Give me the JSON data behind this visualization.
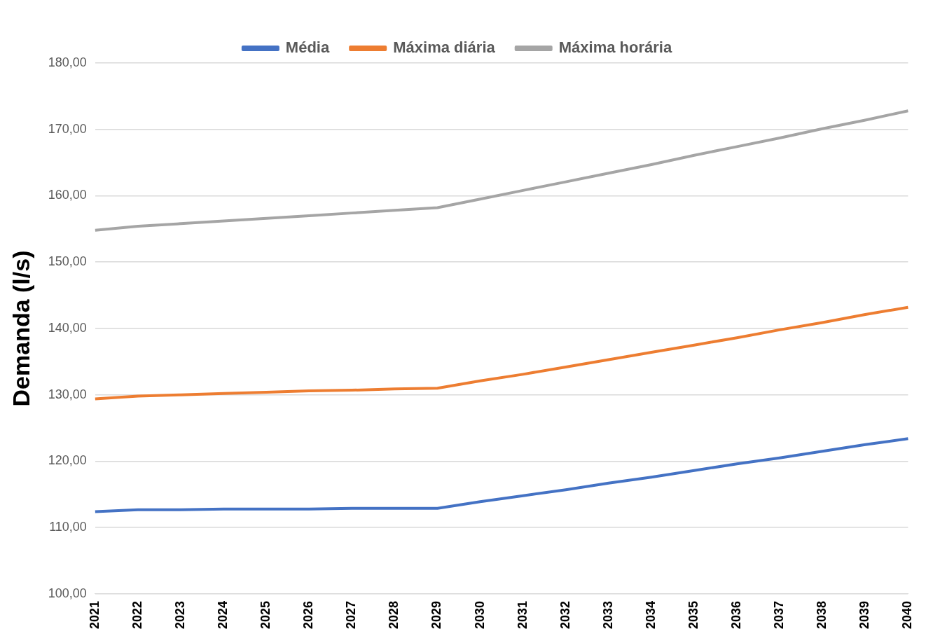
{
  "chart_data": {
    "type": "line",
    "ylabel": "Demanda (l/s)",
    "categories": [
      "2021",
      "2022",
      "2023",
      "2024",
      "2025",
      "2026",
      "2027",
      "2028",
      "2029",
      "2030",
      "2031",
      "2032",
      "2033",
      "2034",
      "2035",
      "2036",
      "2037",
      "2038",
      "2039",
      "2040"
    ],
    "series": [
      {
        "name": "Média",
        "color": "#4472c4",
        "values": [
          112.4,
          112.7,
          112.7,
          112.8,
          112.8,
          112.8,
          112.9,
          112.9,
          112.9,
          113.9,
          114.8,
          115.7,
          116.7,
          117.6,
          118.6,
          119.6,
          120.5,
          121.5,
          122.5,
          123.4
        ]
      },
      {
        "name": "Máxima diária",
        "color": "#ed7d31",
        "values": [
          129.4,
          129.8,
          130.0,
          130.2,
          130.4,
          130.6,
          130.7,
          130.9,
          131.0,
          132.1,
          133.1,
          134.2,
          135.3,
          136.4,
          137.5,
          138.6,
          139.8,
          140.9,
          142.1,
          143.2
        ]
      },
      {
        "name": "Máxima horária",
        "color": "#a5a5a5",
        "values": [
          154.8,
          155.4,
          155.8,
          156.2,
          156.6,
          157.0,
          157.4,
          157.8,
          158.2,
          159.5,
          160.8,
          162.1,
          163.4,
          164.7,
          166.1,
          167.4,
          168.7,
          170.1,
          171.4,
          172.8
        ]
      }
    ],
    "ylim": [
      100,
      180
    ],
    "yticks": [
      {
        "value": 100,
        "label": "100,00"
      },
      {
        "value": 110,
        "label": "110,00"
      },
      {
        "value": 120,
        "label": "120,00"
      },
      {
        "value": 130,
        "label": "130,00"
      },
      {
        "value": 140,
        "label": "140,00"
      },
      {
        "value": 150,
        "label": "150,00"
      },
      {
        "value": 160,
        "label": "160,00"
      },
      {
        "value": 170,
        "label": "170,00"
      },
      {
        "value": 180,
        "label": "180,00"
      }
    ],
    "grid": "y",
    "legend": "top",
    "marker": "none",
    "line_style": "solid"
  }
}
